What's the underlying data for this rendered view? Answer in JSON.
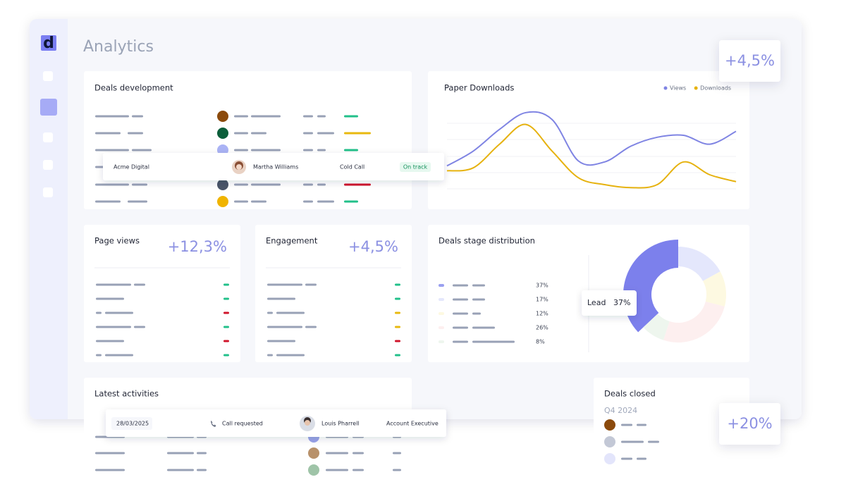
{
  "sidebar": {
    "logo": "d"
  },
  "header": {
    "title": "Analytics"
  },
  "deals_development": {
    "title": "Deals development",
    "highlight": {
      "company": "Acme Digital",
      "contact": "Martha Williams",
      "activity": "Cold Call",
      "status": "On track"
    }
  },
  "page_views": {
    "title": "Page views",
    "change": "+12,3%"
  },
  "engagement": {
    "title": "Engagement",
    "change": "+4,5%"
  },
  "floating_badges": [
    "+4,5%",
    "+20%"
  ],
  "latest_activities": {
    "title": "Latest activities",
    "highlight": {
      "date": "28/03/2025",
      "activity": "Call requested",
      "contact": "Louis Pharrell",
      "role": "Account Executive"
    }
  },
  "deals_closed": {
    "title": "Deals closed",
    "period": "Q4 2024"
  },
  "chart_data": [
    {
      "type": "line",
      "title": "Paper Downloads",
      "ylim": [
        0,
        100
      ],
      "series": [
        {
          "name": "Views",
          "color": "#7f84e3",
          "values": [
            39,
            54,
            76,
            93,
            86,
            44,
            43,
            59,
            68,
            70,
            61,
            74
          ]
        },
        {
          "name": "Downloads",
          "color": "#e6b20f",
          "values": [
            34,
            37,
            61,
            81,
            54,
            27,
            20,
            17,
            20,
            43,
            30,
            23
          ]
        }
      ]
    },
    {
      "type": "pie",
      "title": "Deals stage distribution",
      "categories": [
        "Lead",
        null,
        null,
        null,
        null
      ],
      "values": [
        37,
        17,
        12,
        26,
        8
      ],
      "value_labels": [
        "37%",
        "17%",
        "12%",
        "26%",
        "8%"
      ],
      "colors": [
        "#7c80ec",
        "#e4e7fc",
        "#fdf9e1",
        "#fdefef",
        "#eef6ee"
      ]
    }
  ]
}
